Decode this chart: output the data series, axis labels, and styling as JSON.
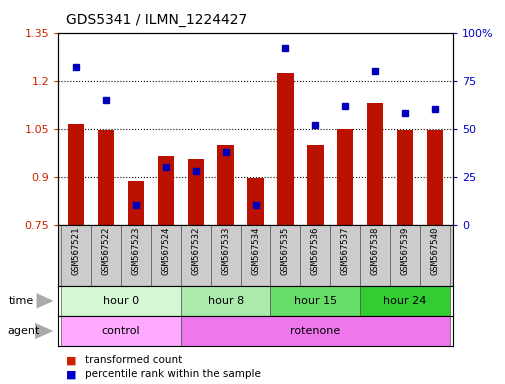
{
  "title": "GDS5341 / ILMN_1224427",
  "samples": [
    "GSM567521",
    "GSM567522",
    "GSM567523",
    "GSM567524",
    "GSM567532",
    "GSM567533",
    "GSM567534",
    "GSM567535",
    "GSM567536",
    "GSM567537",
    "GSM567538",
    "GSM567539",
    "GSM567540"
  ],
  "transformed_count": [
    1.065,
    1.045,
    0.885,
    0.965,
    0.955,
    1.0,
    0.895,
    1.225,
    1.0,
    1.05,
    1.13,
    1.045,
    1.045
  ],
  "percentile_rank": [
    82,
    65,
    10,
    30,
    28,
    38,
    10,
    92,
    52,
    62,
    80,
    58,
    60
  ],
  "time_groups": [
    {
      "label": "hour 0",
      "start": 0,
      "end": 4,
      "color": "#d4f7d4"
    },
    {
      "label": "hour 8",
      "start": 4,
      "end": 7,
      "color": "#aaeaaa"
    },
    {
      "label": "hour 15",
      "start": 7,
      "end": 10,
      "color": "#66dd66"
    },
    {
      "label": "hour 24",
      "start": 10,
      "end": 13,
      "color": "#33cc33"
    }
  ],
  "agent_groups": [
    {
      "label": "control",
      "start": 0,
      "end": 4,
      "color": "#ffaaff"
    },
    {
      "label": "rotenone",
      "start": 4,
      "end": 13,
      "color": "#ee77ee"
    }
  ],
  "ylim_left": [
    0.75,
    1.35
  ],
  "ylim_right": [
    0,
    100
  ],
  "yticks_left": [
    0.75,
    0.9,
    1.05,
    1.2,
    1.35
  ],
  "yticks_right": [
    0,
    25,
    50,
    75,
    100
  ],
  "bar_color": "#bb1100",
  "dot_color": "#0000bb",
  "bar_width": 0.55,
  "bg_color": "#ffffff",
  "grid_color": "#000000",
  "tick_label_color_left": "#cc2200",
  "tick_label_color_right": "#0000cc",
  "sample_box_color": "#cccccc",
  "legend": [
    {
      "label": "transformed count",
      "color": "#cc2200"
    },
    {
      "label": "percentile rank within the sample",
      "color": "#0000cc"
    }
  ]
}
